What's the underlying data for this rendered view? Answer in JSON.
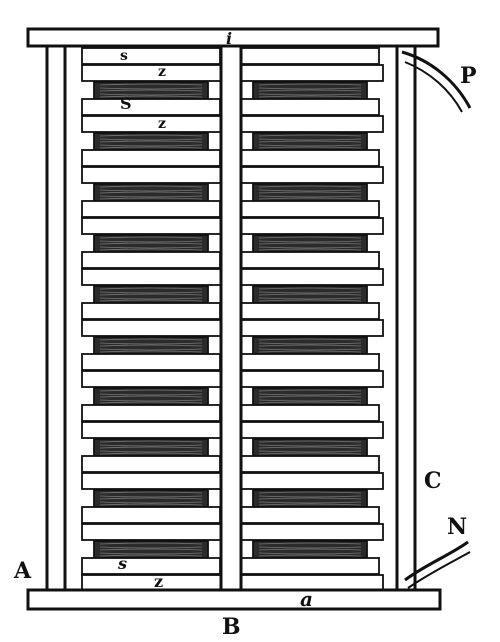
{
  "labels": {
    "top_bar": "i",
    "bottom_bar": "a",
    "base": "B",
    "left_rod": "A",
    "right_rod": "C",
    "positive_wire": "P",
    "negative_wire": "N",
    "top_disc_1": "s",
    "top_zinc_1": "z",
    "top_disc_2": "S",
    "top_zinc_2": "z",
    "bottom_disc": "s",
    "bottom_zinc": "z"
  },
  "colors": {
    "ink": "#111111",
    "paper": "#ffffff",
    "cloth": "#2b2b2b"
  }
}
